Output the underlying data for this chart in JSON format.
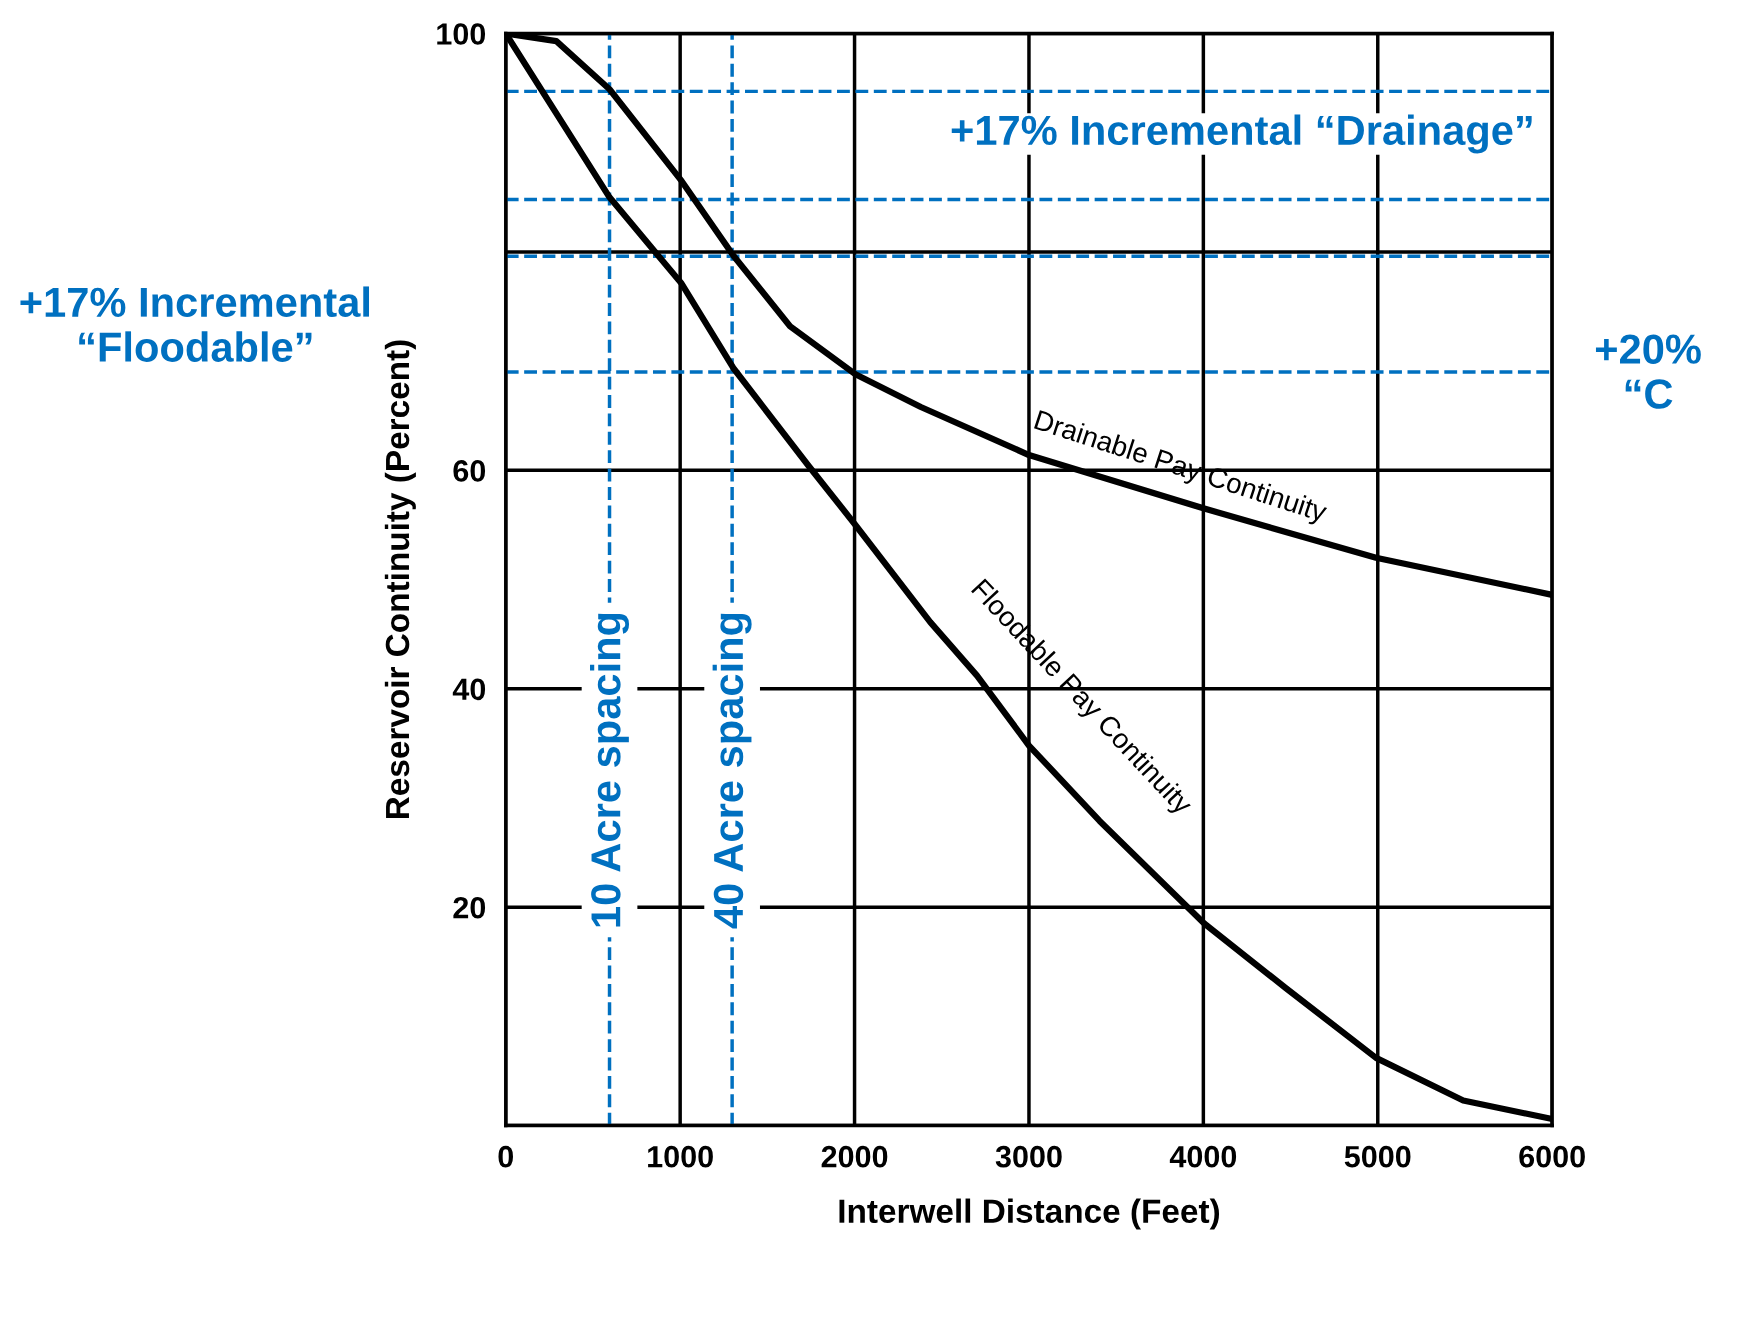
{
  "chart_data": {
    "type": "line",
    "xlabel": "Interwell Distance (Feet)",
    "ylabel": "Reservoir Continuity (Percent)",
    "xlim": [
      0,
      6000
    ],
    "ylim": [
      0,
      100
    ],
    "xticks": [
      0,
      1000,
      2000,
      3000,
      4000,
      5000,
      6000
    ],
    "yticks": [
      {
        "value": 0,
        "label": null
      },
      20,
      40,
      60,
      {
        "value": 80,
        "label": null
      },
      100
    ],
    "grid": true,
    "marker": "none",
    "line_style": "solid",
    "series": [
      {
        "name": "Drainable Pay Continuity",
        "color": "#000000",
        "x": [
          0,
          290,
          595,
          1008,
          1308,
          1630,
          2005,
          2380,
          3000,
          4005,
          4990,
          6000
        ],
        "values": [
          100,
          99.3,
          94.9,
          86.5,
          79.6,
          73.2,
          68.8,
          65.8,
          61.4,
          56.5,
          52,
          48.6
        ]
      },
      {
        "name": "Floodable Pay Continuity",
        "color": "#000000",
        "x": [
          0,
          595,
          1008,
          1308,
          1737,
          2005,
          2434,
          2702,
          3000,
          3405,
          4005,
          4472,
          4990,
          5490,
          6000
        ],
        "values": [
          100,
          85,
          77.1,
          69.3,
          60.4,
          55,
          46.1,
          41.2,
          34.8,
          27.9,
          18.5,
          12.6,
          6.2,
          2.3,
          0.6
        ]
      }
    ],
    "ref_lines": [
      {
        "axis": "x",
        "value": 595,
        "label": "10 Acre spacing",
        "color": "#0070c0",
        "line_style": "dashed"
      },
      {
        "axis": "x",
        "value": 1298,
        "label": "40 Acre spacing",
        "color": "#0070c0",
        "line_style": "dashed"
      },
      {
        "axis": "y",
        "value": 94.7,
        "color": "#0070c0",
        "line_style": "dashed"
      },
      {
        "axis": "y",
        "value": 79.6,
        "color": "#0070c0",
        "line_style": "dashed"
      },
      {
        "axis": "y",
        "value": 84.8,
        "color": "#0070c0",
        "line_style": "dashed"
      },
      {
        "axis": "y",
        "value": 69,
        "color": "#0070c0",
        "line_style": "dashed"
      }
    ],
    "annotations": [
      "+17% Incremental\n“Floodable”",
      "+17% Incremental “Drainage”",
      "+20%\n“C"
    ]
  }
}
